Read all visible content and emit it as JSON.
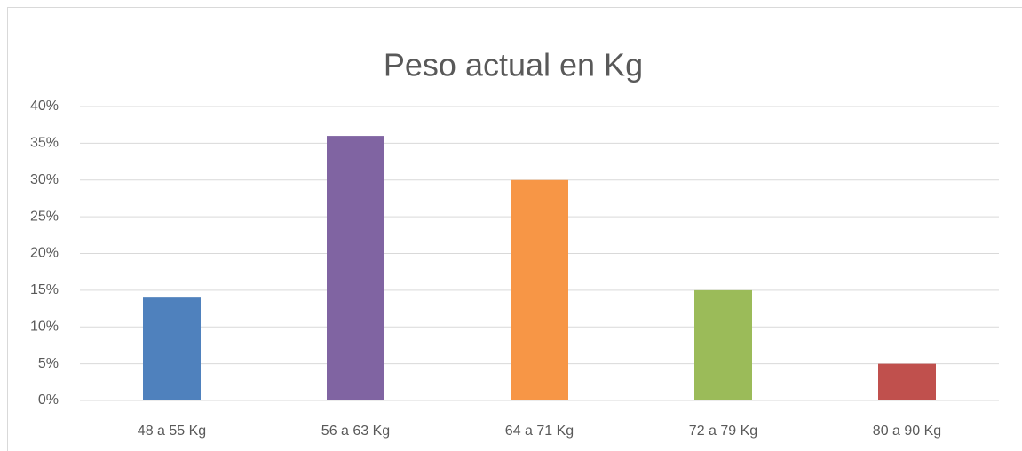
{
  "chart_data": {
    "type": "bar",
    "title": "Peso actual en Kg",
    "categories": [
      "48 a 55 Kg",
      "56 a 63 Kg",
      "64 a 71 Kg",
      "72 a 79 Kg",
      "80 a 90 Kg"
    ],
    "values": [
      14,
      36,
      30,
      15,
      5
    ],
    "colors": [
      "#4f81bd",
      "#8064a2",
      "#f79646",
      "#9bbb59",
      "#c0504d"
    ],
    "ylim": [
      0,
      40
    ],
    "yticks": [
      {
        "value": 0,
        "label": "0%"
      },
      {
        "value": 5,
        "label": "5%"
      },
      {
        "value": 10,
        "label": "10%"
      },
      {
        "value": 15,
        "label": "15%"
      },
      {
        "value": 20,
        "label": "20%"
      },
      {
        "value": 25,
        "label": "25%"
      },
      {
        "value": 30,
        "label": "30%"
      },
      {
        "value": 35,
        "label": "35%"
      },
      {
        "value": 40,
        "label": "40%"
      }
    ],
    "grid": true
  }
}
